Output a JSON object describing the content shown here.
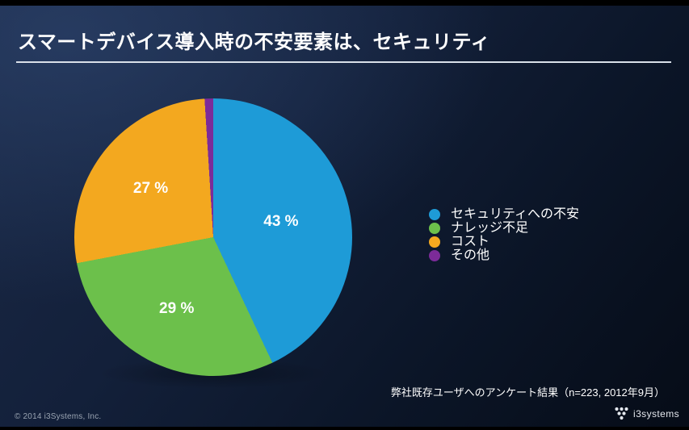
{
  "slide": {
    "title": "スマートデバイス導入時の不安要素は、セキュリティ",
    "footnote": "弊社既存ユーザへのアンケート結果（n=223, 2012年9月）",
    "copyright": "© 2014 i3Systems, Inc.",
    "logo_text": "i3systems"
  },
  "colors": {
    "background_top": "#1a2946",
    "background_bottom": "#060c17",
    "title_text": "#ffffff",
    "divider": "#d9e0e9",
    "legend_text": "#ffffff",
    "footnote_text": "#ffffff",
    "copyright_text": "#9aa4b2",
    "logo_color": "#e4e8ee"
  },
  "chart_data": {
    "type": "pie",
    "categories": [
      "セキュリティへの不安",
      "ナレッジ不足",
      "コスト",
      "その他"
    ],
    "values": [
      43,
      29,
      27,
      1
    ],
    "slice_labels": [
      "43 %",
      "29 %",
      "27 %",
      ""
    ],
    "colors": [
      "#1e9bd7",
      "#6cc04b",
      "#f3a81f",
      "#7c2b99"
    ],
    "unit": "%",
    "start_angle_deg": 0,
    "direction": "clockwise",
    "legend_position": "right",
    "data_labels": "inside",
    "title": "スマートデバイス導入時の不安要素は、セキュリティ",
    "source_note": "弊社既存ユーザへのアンケート結果（n=223, 2012年9月）"
  }
}
